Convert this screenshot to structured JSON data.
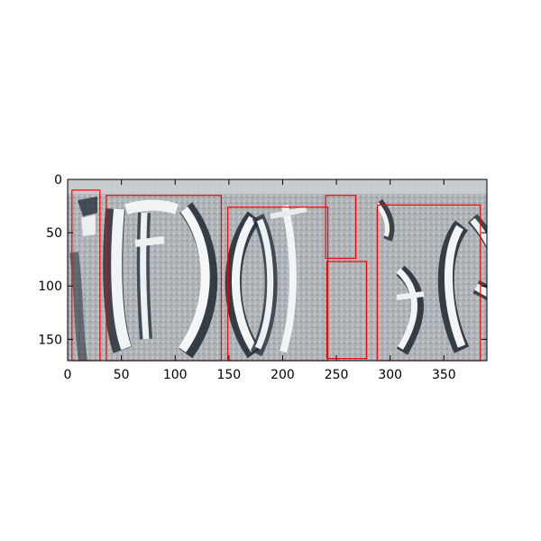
{
  "chart_data": {
    "type": "image",
    "title": "",
    "xlabel": "",
    "ylabel": "",
    "xlim": [
      0,
      390
    ],
    "ylim": [
      170,
      0
    ],
    "grid": false,
    "x_ticks": [
      0,
      50,
      100,
      150,
      200,
      250,
      300,
      350
    ],
    "y_ticks": [
      0,
      50,
      100,
      150
    ],
    "x_tick_labels": [
      "0",
      "50",
      "100",
      "150",
      "200",
      "250",
      "300",
      "350"
    ],
    "y_tick_labels": [
      "0",
      "50",
      "100",
      "150"
    ],
    "image_description": "grayscale photo of carved inscription glyphs on stone",
    "box_color": "#ff0000",
    "boxes": [
      {
        "x0": 4,
        "y0": 10,
        "x1": 30,
        "y1": 170
      },
      {
        "x0": 36,
        "y0": 15,
        "x1": 143,
        "y1": 170
      },
      {
        "x0": 149,
        "y0": 26,
        "x1": 242,
        "y1": 170
      },
      {
        "x0": 240,
        "y0": 15,
        "x1": 268,
        "y1": 74
      },
      {
        "x0": 241,
        "y0": 77,
        "x1": 278,
        "y1": 168
      },
      {
        "x0": 288,
        "y0": 24,
        "x1": 384,
        "y1": 170
      }
    ]
  }
}
